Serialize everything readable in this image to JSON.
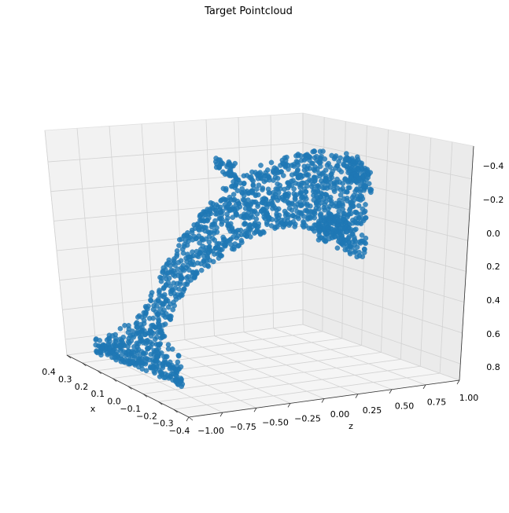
{
  "chart_data": {
    "type": "scatter",
    "projection": "3d",
    "title": "Target Pointcloud",
    "xlabel": "x",
    "ylabel": "",
    "zlabel": "z",
    "x_ticks": [
      "0.4",
      "0.3",
      "0.2",
      "0.1",
      "0.0",
      "−0.1",
      "−0.2",
      "−0.3",
      "−0.4"
    ],
    "z_ticks": [
      "−1.00",
      "−0.75",
      "−0.50",
      "−0.25",
      "0.00",
      "0.25",
      "0.50",
      "0.75",
      "1.00"
    ],
    "y_ticks": [
      "−0.4",
      "−0.2",
      "0.0",
      "0.2",
      "0.4",
      "0.6",
      "0.8"
    ],
    "xlim": [
      -0.4,
      0.4
    ],
    "zlim": [
      -1.0,
      1.0
    ],
    "ylim": [
      -0.5,
      0.85
    ],
    "y_inverted": true,
    "grid": true,
    "legend": "none",
    "series": [
      {
        "color": "#1f77b4",
        "shape": "dolphin",
        "approx_points": 2500,
        "z_range": [
          -1.0,
          0.75
        ],
        "y_range": [
          -0.45,
          0.75
        ]
      }
    ]
  }
}
